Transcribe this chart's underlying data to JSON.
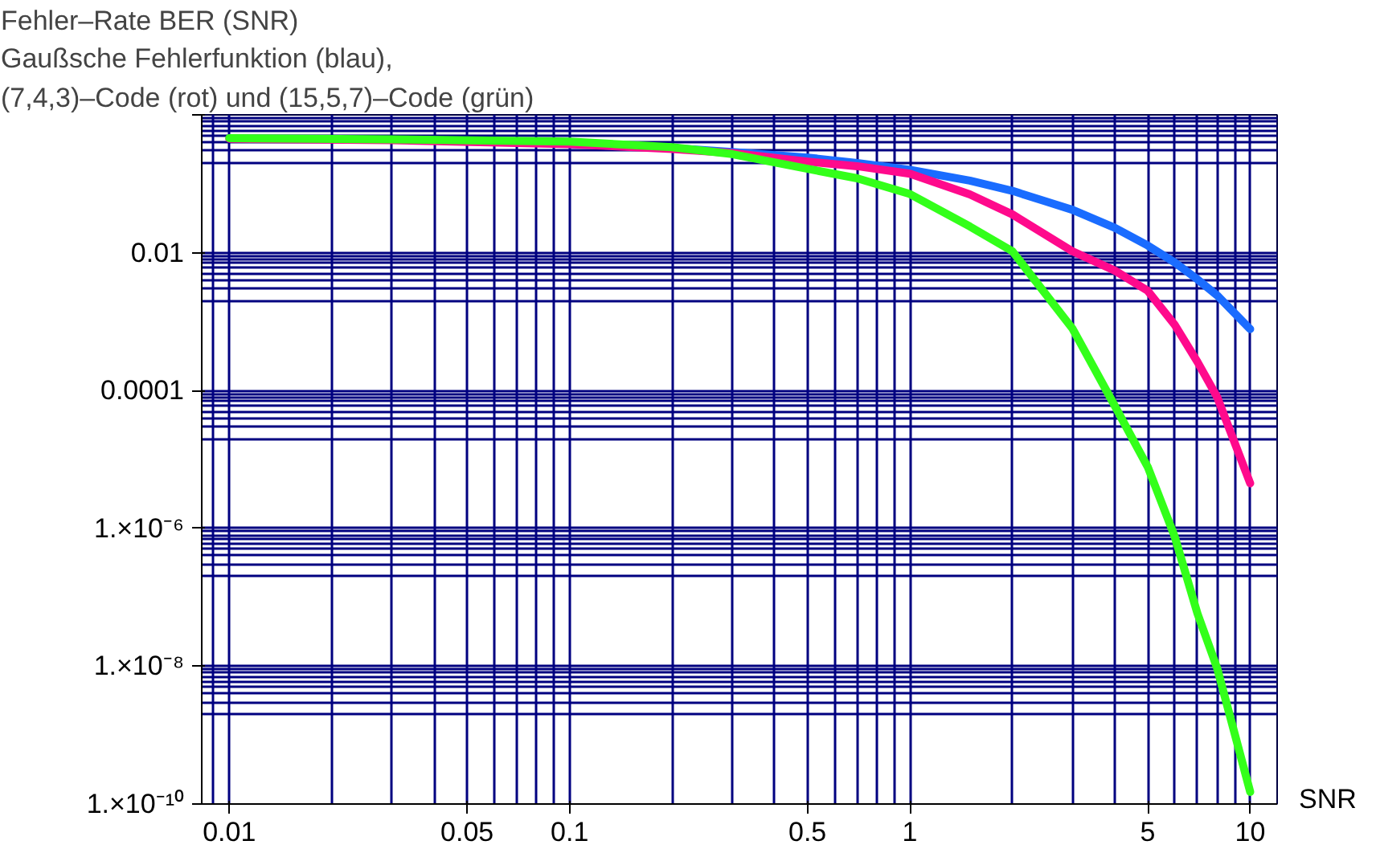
{
  "chart_data": {
    "type": "line",
    "title": "Fehler–Rate BER (SNR)",
    "subtitle": "Gaußsche Fehlerfunktion (blau),\n(7,4,3)–Code (rot) und (15,5,7)–Code (grün)",
    "xlabel": "SNR",
    "x": [
      0.01,
      0.03,
      0.1,
      0.2,
      0.3,
      0.5,
      0.7,
      1,
      1.5,
      2,
      3,
      4,
      5,
      6,
      7,
      8,
      10
    ],
    "series": [
      {
        "color": "#1a6cff",
        "values": [
          null,
          null,
          0.376,
          0.33,
          0.29,
          0.24,
          0.2,
          0.159,
          0.111,
          0.079,
          0.042,
          0.023,
          0.0127,
          0.0072,
          0.0041,
          0.0024,
          0.00078
        ]
      },
      {
        "color": "#ff0a8c",
        "values": [
          0.45,
          0.43,
          0.375,
          0.32,
          0.28,
          0.21,
          0.18,
          0.14,
          0.07,
          0.036,
          0.0105,
          0.0055,
          0.0028,
          0.0009,
          0.00026,
          8e-05,
          4.5e-06
        ]
      },
      {
        "color": "#33ff1a",
        "values": [
          0.46,
          0.44,
          0.41,
          0.34,
          0.27,
          0.165,
          0.12,
          0.071,
          0.024,
          0.0105,
          0.0008,
          6e-05,
          7.8e-06,
          7.6e-07,
          5.8e-08,
          9.3e-09,
          1.5e-10
        ]
      }
    ],
    "xlim": [
      0.0083,
      12
    ],
    "ylim": [
      1e-10,
      1
    ],
    "log": "xy",
    "xticks": [
      0.01,
      0.05,
      0.1,
      0.5,
      1,
      5,
      10
    ],
    "yticks": [
      {
        "value": 1e-10,
        "label": "1.×10⁻¹⁰"
      },
      {
        "value": 1e-08,
        "label": "1.×10⁻⁸"
      },
      {
        "value": 1e-06,
        "label": "1.×10⁻⁶"
      },
      0.0001,
      0.01,
      {
        "value": 1,
        "label": null
      }
    ],
    "grid": true,
    "line_style": "solid",
    "marker": "none"
  }
}
